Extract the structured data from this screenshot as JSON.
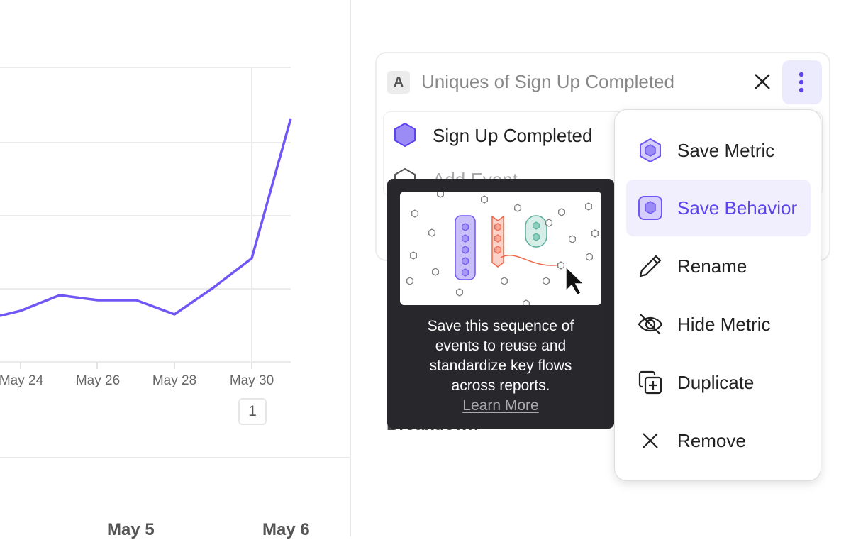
{
  "chart": {
    "x_ticks": [
      "May 24",
      "May 26",
      "May 28",
      "May 30"
    ],
    "annotation_badge": "1",
    "line_color": "#7156f5"
  },
  "lower_axis": {
    "labels": [
      "May 5",
      "May 6"
    ]
  },
  "metric": {
    "letter": "A",
    "title": "Uniques of Sign Up Completed",
    "event": "Sign Up Completed",
    "add_event": "Add Event",
    "breakdown": "Breakdown"
  },
  "tooltip": {
    "text": "Save this sequence of events to reuse and standardize key flows across reports.",
    "link": "Learn More"
  },
  "menu": {
    "items": [
      {
        "label": "Save Metric",
        "icon": "hexagon-icon"
      },
      {
        "label": "Save Behavior",
        "icon": "behavior-icon",
        "active": true
      },
      {
        "label": "Rename",
        "icon": "pencil-icon"
      },
      {
        "label": "Hide Metric",
        "icon": "eye-off-icon"
      },
      {
        "label": "Duplicate",
        "icon": "duplicate-icon"
      },
      {
        "label": "Remove",
        "icon": "close-icon"
      }
    ]
  },
  "colors": {
    "accent": "#5b43f0",
    "accent_bg": "#f1effd",
    "tooltip_bg": "#28282c"
  }
}
